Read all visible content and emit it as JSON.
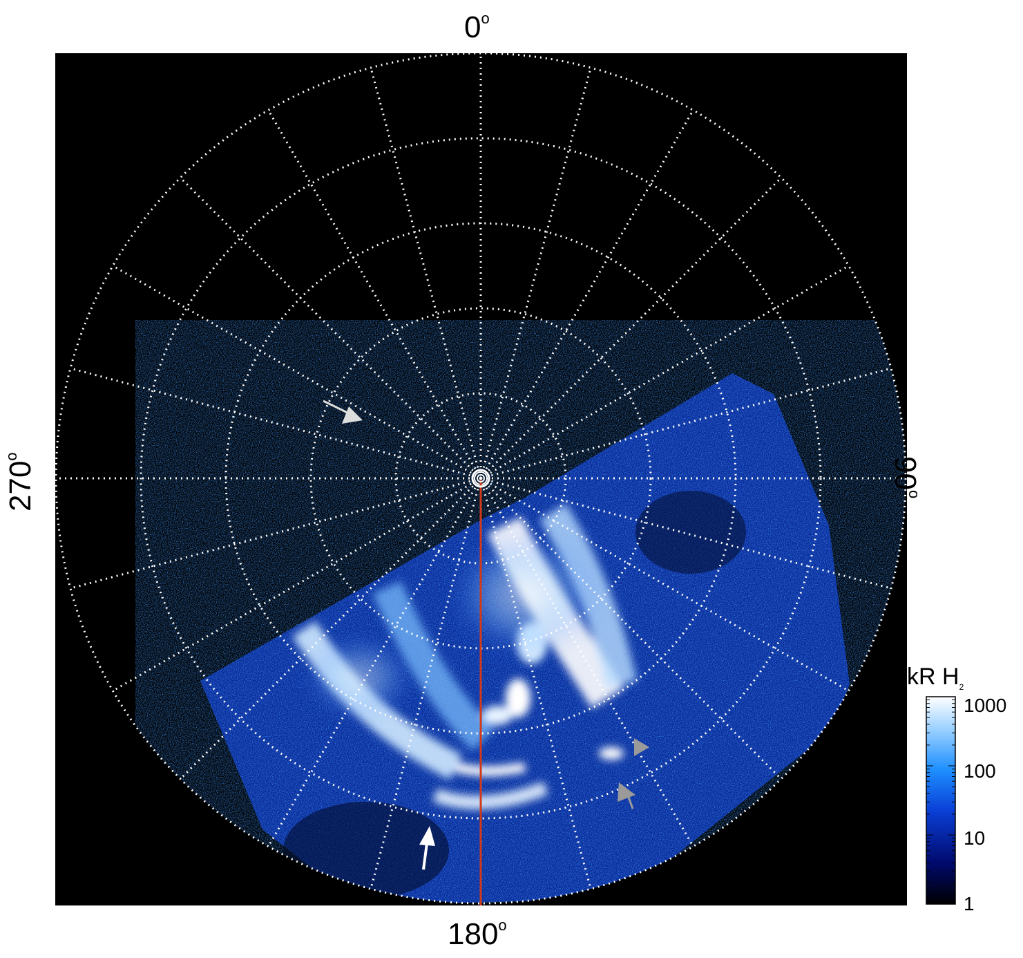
{
  "axis_labels": {
    "top": "0",
    "bottom": "180",
    "left": "270",
    "right": "90",
    "degree_symbol": "o"
  },
  "colorbar": {
    "unit_main": "kR H",
    "unit_sub": "2",
    "ticks": [
      "1000",
      "100",
      "10",
      "1"
    ],
    "scale": "log",
    "colors": [
      "#000000",
      "#000a6e",
      "#0a3fd6",
      "#1e90ff",
      "#9fd3ff",
      "#ffffff"
    ]
  },
  "colors": {
    "grid": "#ffffff",
    "background": "#000000",
    "meridian_line": "#d03a1a",
    "arrow_white": "#ffffff",
    "arrow_grey": "#9a9a9a"
  }
}
